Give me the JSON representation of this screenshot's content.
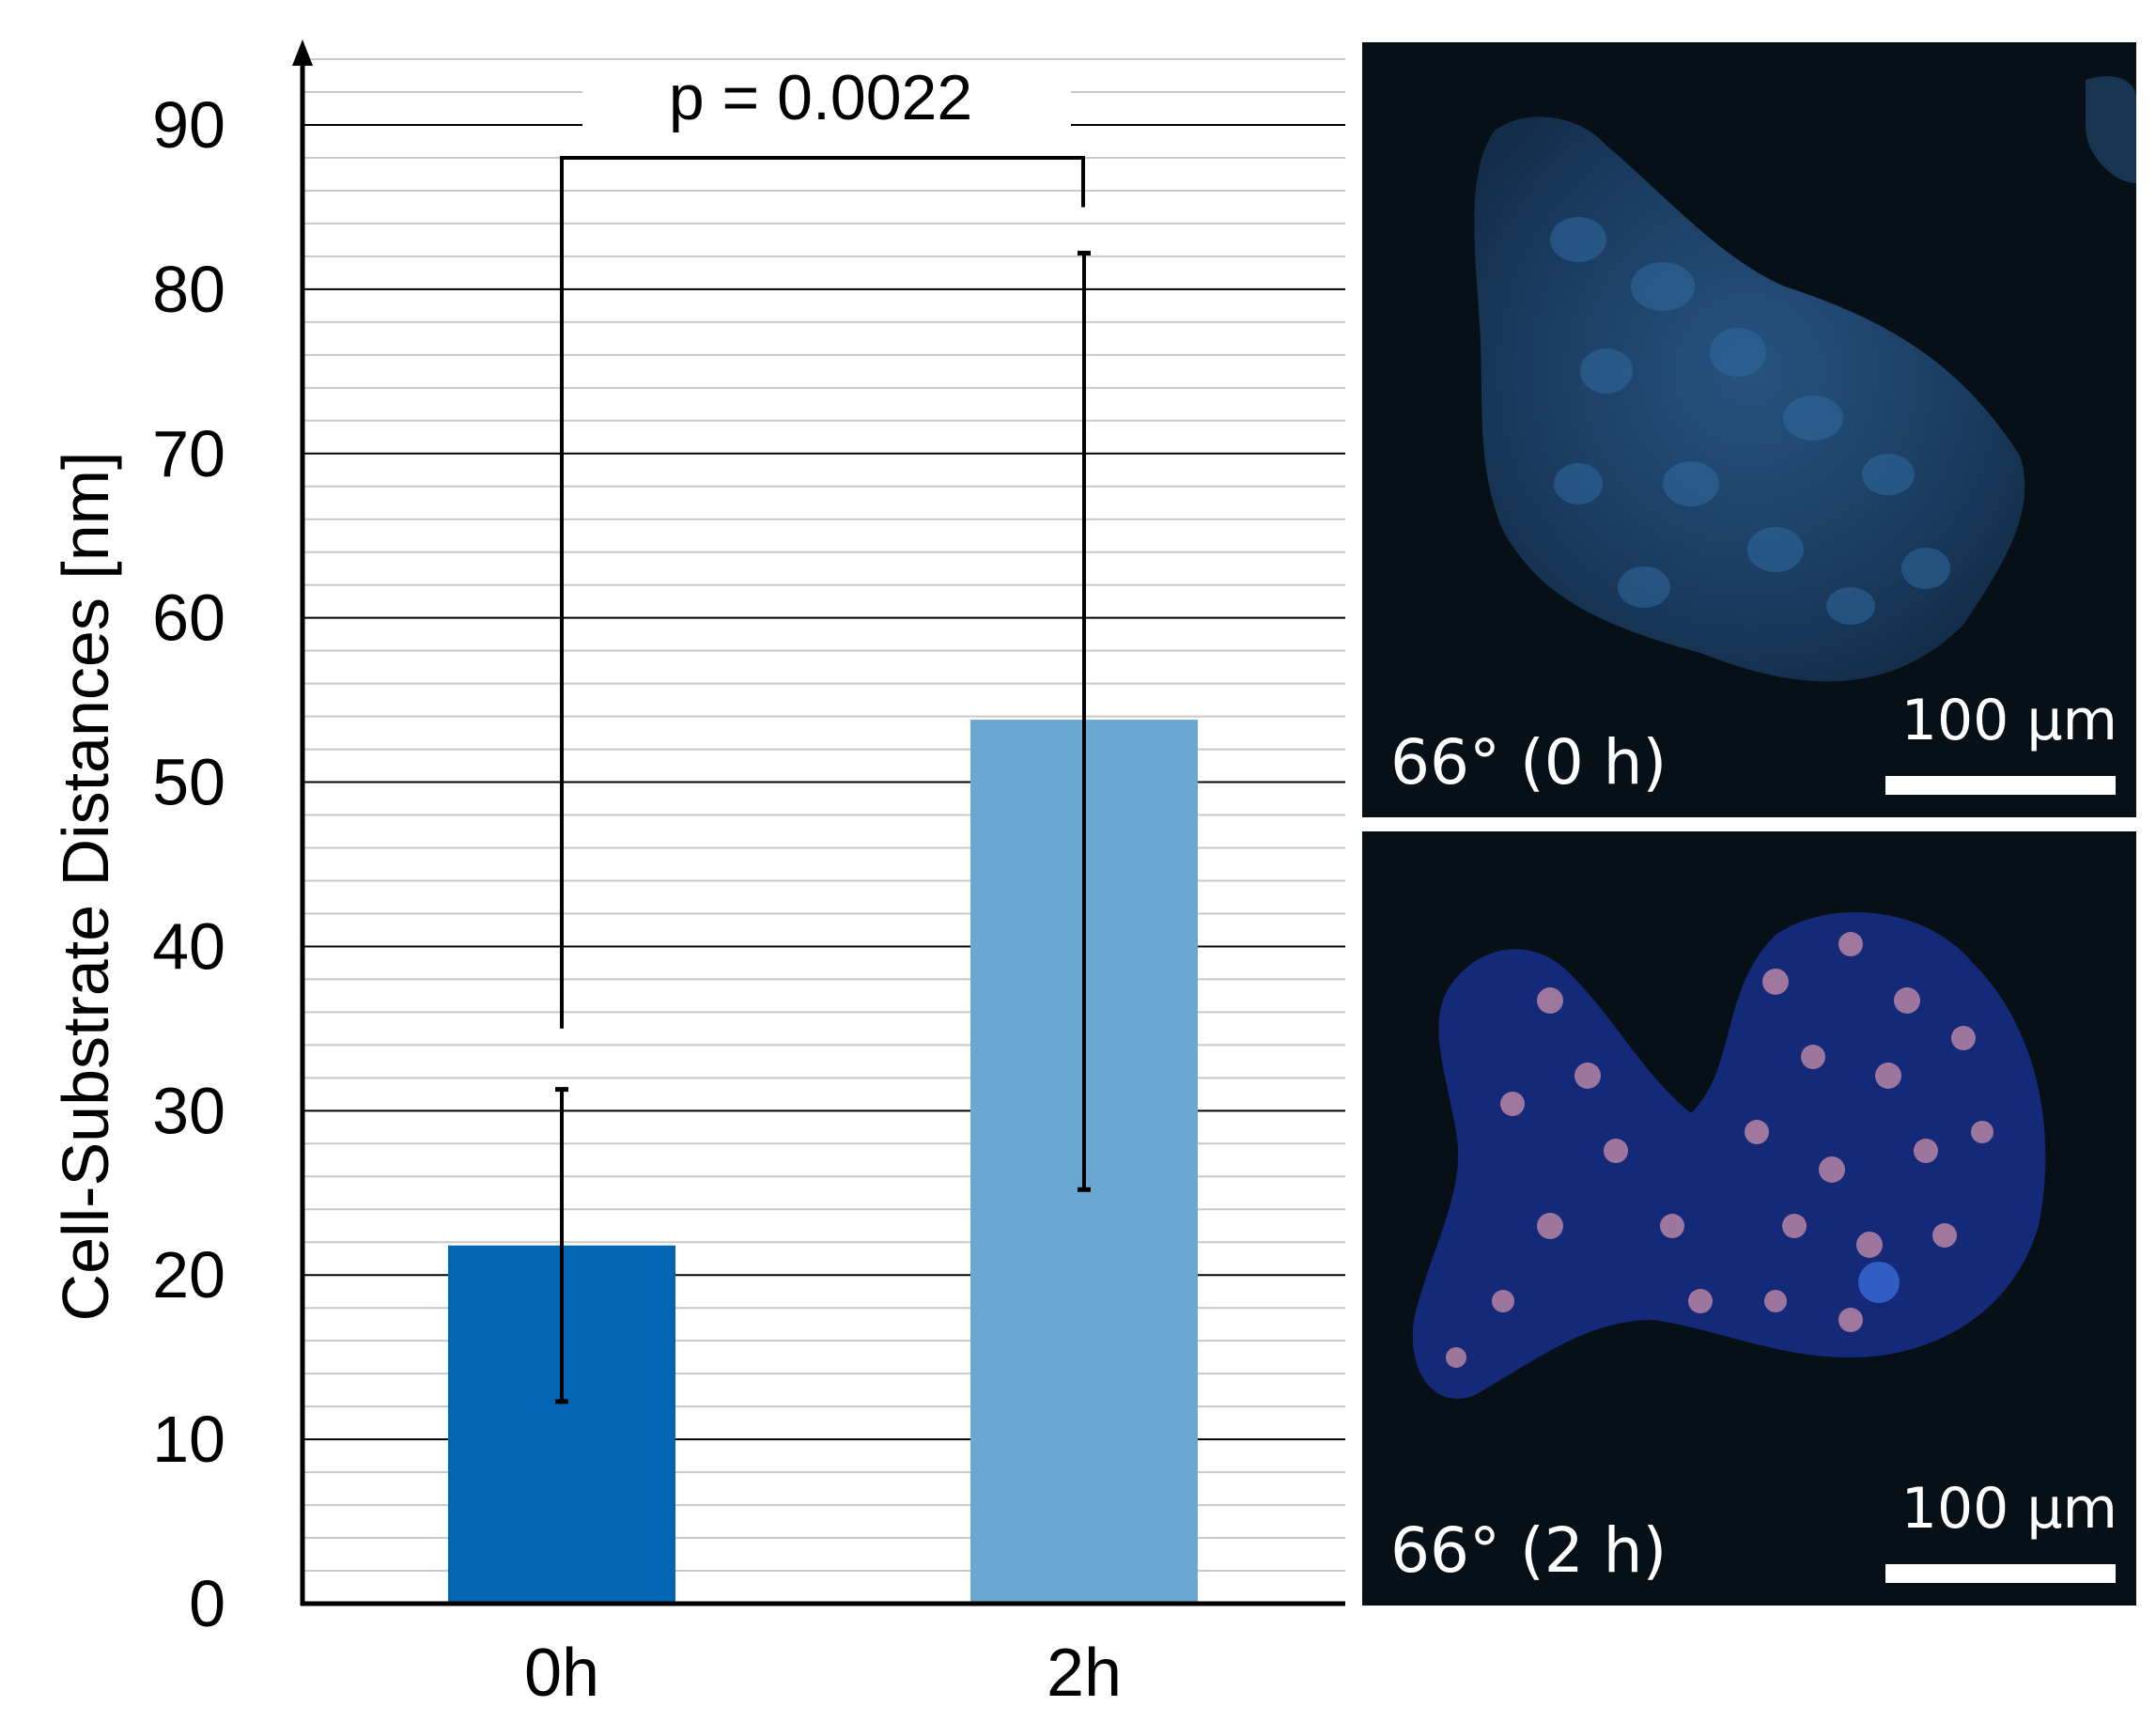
{
  "chart_data": {
    "type": "bar",
    "categories": [
      "0h",
      "2h"
    ],
    "values": [
      21.8,
      53.8
    ],
    "error_bars": [
      {
        "low": 12.3,
        "high": 31.3
      },
      {
        "low": 25.2,
        "high": 82.2
      }
    ],
    "bar_colors": [
      "#0066b4",
      "#6aa7d2"
    ],
    "ylabel": "Cell-Substrate Distances [nm]",
    "xlabel": "",
    "ylim": [
      0,
      90
    ],
    "major_ticks": [
      0,
      10,
      20,
      30,
      40,
      50,
      60,
      70,
      80,
      90
    ],
    "minor_step": 2,
    "grid": true,
    "significance": {
      "label": "p = 0.0022",
      "bracket_y": 88,
      "left_bottom": 35,
      "right_bottom": 85
    }
  },
  "panels": [
    {
      "caption": "66° (0 h)",
      "scale_label": "100 µm"
    },
    {
      "caption": "66° (2 h)",
      "scale_label": "100 µm"
    }
  ],
  "colors": {
    "bar_dark": "#0066b4",
    "bar_light": "#6aa7d2",
    "major_grid": "#000000",
    "minor_grid": "#c8c8c8",
    "panel_background": "#071016"
  }
}
